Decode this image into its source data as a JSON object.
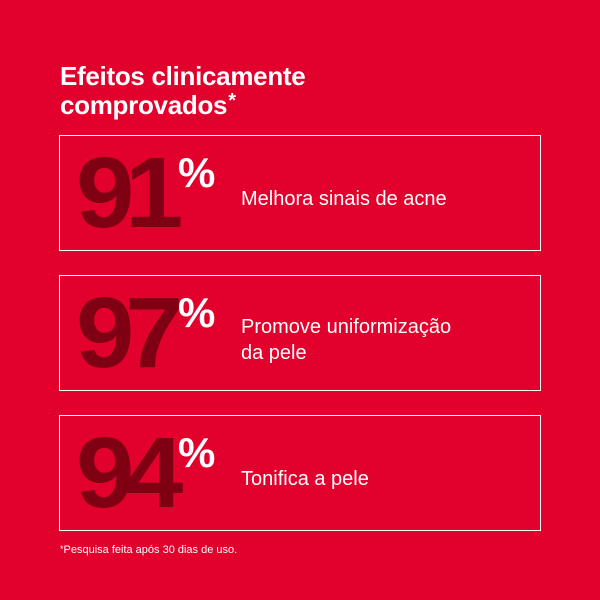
{
  "headline": {
    "line1": "Efeitos clinicamente",
    "line2": "comprovados",
    "asterisk": "*"
  },
  "stats": [
    {
      "value": "91",
      "unit": "%",
      "description_line1": "Melhora sinais de acne",
      "description_line2": ""
    },
    {
      "value": "97",
      "unit": "%",
      "description_line1": "Promove uniformização",
      "description_line2": "da pele"
    },
    {
      "value": "94",
      "unit": "%",
      "description_line1": "Tonifica a pele",
      "description_line2": ""
    }
  ],
  "footnote": {
    "asterisk": "*",
    "text": "Pesquisa feita após 30 dias de uso."
  },
  "colors": {
    "background": "#e2002c",
    "number": "#800013",
    "text": "#ffffff"
  }
}
